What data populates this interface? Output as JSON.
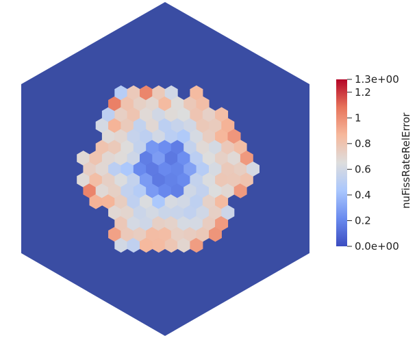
{
  "viewer": {
    "background_color": "#ffffff",
    "domain_color": "#3a4da3",
    "colormap": "Cool to Warm",
    "colormap_stops": [
      "#3b4cc0",
      "#6a8bef",
      "#aac7fd",
      "#dddddd",
      "#f6b89c",
      "#e7745b",
      "#b40426"
    ]
  },
  "legend": {
    "title": "nuFissRateRelError",
    "range_min": 0.0,
    "range_max": 1.3,
    "max_label": "1.3e+00",
    "min_label": "0.0e+00",
    "ticks": [
      {
        "value": 1.2,
        "label": "1.2"
      },
      {
        "value": 1.0,
        "label": "1"
      },
      {
        "value": 0.8,
        "label": "0.8"
      },
      {
        "value": 0.6,
        "label": "0.6"
      },
      {
        "value": 0.4,
        "label": "0.4"
      },
      {
        "value": 0.2,
        "label": "0.2"
      }
    ]
  }
}
